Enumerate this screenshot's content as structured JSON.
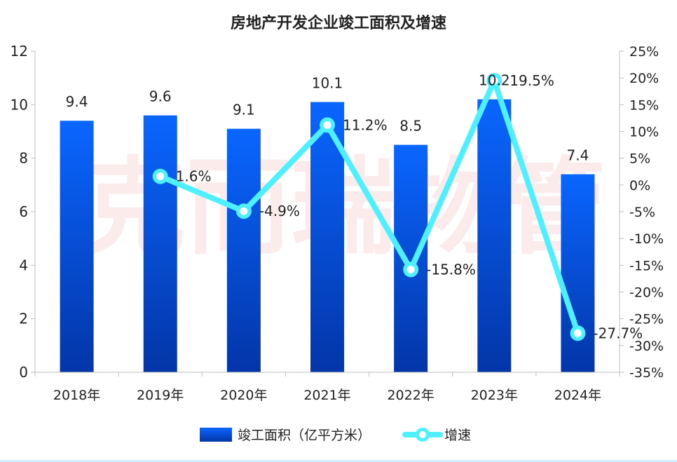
{
  "chart_data": {
    "type": "bar",
    "title": "房地产开发企业竣工面积及增速",
    "categories": [
      "2018年",
      "2019年",
      "2020年",
      "2021年",
      "2022年",
      "2023年",
      "2024年"
    ],
    "series": [
      {
        "name": "竣工面积（亿平方米）",
        "kind": "bar",
        "axis": "left",
        "values": [
          9.4,
          9.6,
          9.1,
          10.1,
          8.5,
          10.2,
          7.4
        ],
        "value_labels": [
          "9.4",
          "9.6",
          "9.1",
          "10.1",
          "8.5",
          "10.2",
          "7.4"
        ]
      },
      {
        "name": "增速",
        "kind": "line",
        "axis": "right",
        "values": [
          null,
          1.6,
          -4.9,
          11.2,
          -15.8,
          19.5,
          -27.7
        ],
        "value_labels": [
          "",
          "1.6%",
          "-4.9%",
          "11.2%",
          "-15.8%",
          "19.5%",
          "-27.7%"
        ]
      }
    ],
    "y_left": {
      "min": 0,
      "max": 12,
      "step": 2,
      "ticks": [
        "0",
        "2",
        "4",
        "6",
        "8",
        "10",
        "12"
      ]
    },
    "y_right": {
      "min": -35,
      "max": 25,
      "step": 5,
      "ticks": [
        "-35%",
        "-30%",
        "-25%",
        "-20%",
        "-15%",
        "-10%",
        "-5%",
        "0%",
        "5%",
        "10%",
        "15%",
        "20%",
        "25%"
      ]
    },
    "grid": false,
    "legend_position": "bottom",
    "colors": {
      "bar_top": "#0a66ff",
      "bar_bottom": "#0335a8",
      "line": "#4ef0ff",
      "marker_inner": "#ffffff",
      "axis": "#bfbfbf",
      "text": "#222222",
      "watermark": "#fbe3e3"
    },
    "watermark_text": "克而瑞物管"
  }
}
